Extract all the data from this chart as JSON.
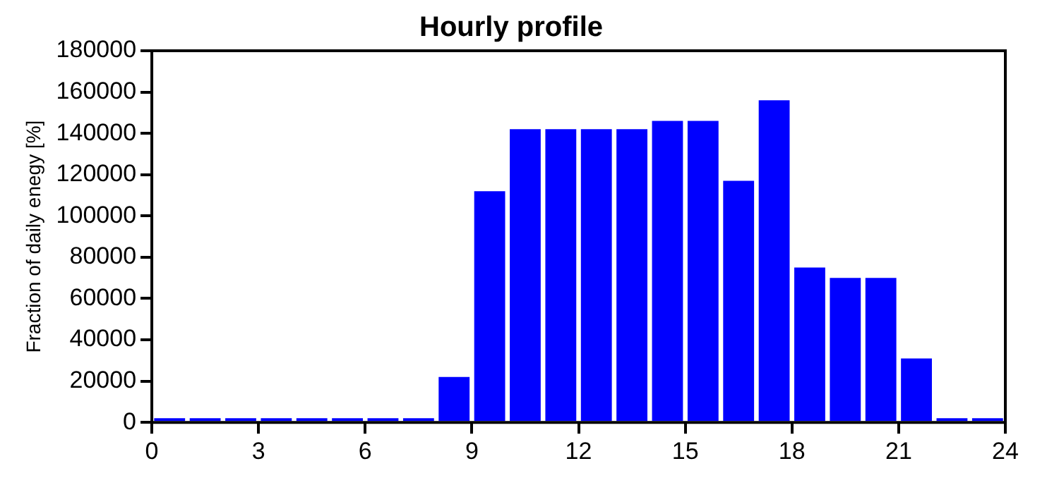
{
  "chart_data": {
    "type": "bar",
    "title": "Hourly profile",
    "ylabel": "Fraction of daily enegy [%]",
    "x": [
      0.5,
      1.5,
      2.5,
      3.5,
      4.5,
      5.5,
      6.5,
      7.5,
      8.5,
      9.5,
      10.5,
      11.5,
      12.5,
      13.5,
      14.5,
      15.5,
      16.5,
      17.5,
      18.5,
      19.5,
      20.5,
      21.5,
      22.5,
      23.5
    ],
    "values": [
      2000,
      2000,
      2000,
      2000,
      2000,
      2000,
      2000,
      2000,
      22000,
      112000,
      142000,
      142000,
      142000,
      142000,
      146000,
      146000,
      117000,
      156000,
      75000,
      70000,
      70000,
      31000,
      2000,
      2000
    ],
    "color": "#0000ff",
    "xlim": [
      0,
      24
    ],
    "xticks": [
      0,
      3,
      6,
      9,
      12,
      15,
      18,
      21,
      24
    ],
    "ylim": [
      0,
      180000
    ],
    "yticks": [
      0,
      20000,
      40000,
      60000,
      80000,
      100000,
      120000,
      140000,
      160000,
      180000
    ],
    "grid": false,
    "legend": false
  }
}
